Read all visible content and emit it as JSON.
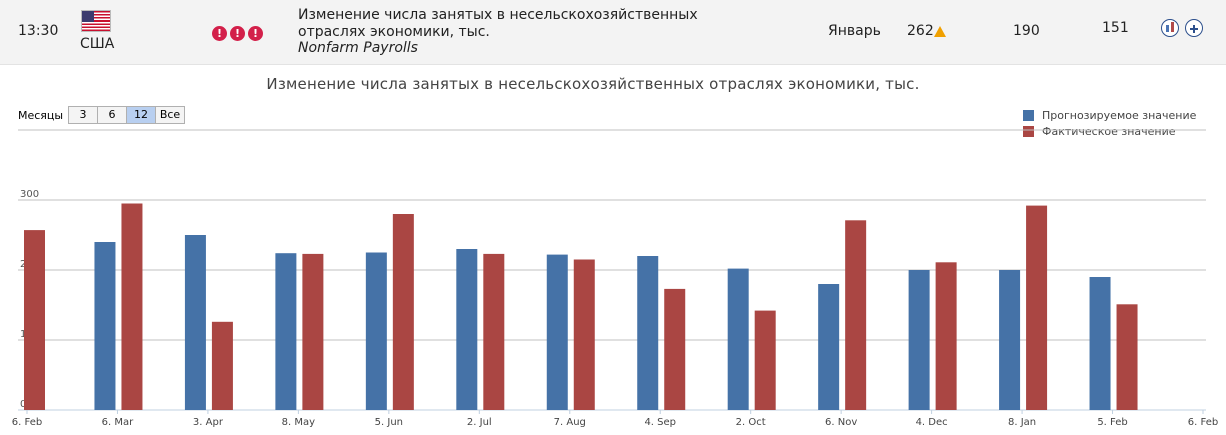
{
  "event": {
    "time": "13:30",
    "country": "США",
    "importance": [
      "!",
      "!",
      "!"
    ],
    "title": "Изменение числа занятых в несельскохозяйственных отраслях экономики, тыс.",
    "subtitle": "Nonfarm Payrolls",
    "period": "Январь",
    "previous": "262",
    "forecast": "190",
    "actual": "151",
    "icons": [
      "us-flag-icon",
      "warning-icon",
      "chart-icon",
      "add-icon"
    ]
  },
  "range_selector": {
    "label": "Месяцы",
    "options": [
      "3",
      "6",
      "12",
      "Все"
    ],
    "selected": "12"
  },
  "chart_data": {
    "type": "bar",
    "title": "Изменение числа занятых в несельскохозяйственных отраслях экономики, тыс.",
    "x_tick_labels": [
      "6. Feb",
      "6. Mar",
      "3. Apr",
      "8. May",
      "5. Jun",
      "2. Jul",
      "7. Aug",
      "4. Sep",
      "2. Oct",
      "6. Nov",
      "4. Dec",
      "8. Jan",
      "5. Feb",
      "6. Feb"
    ],
    "categories": [
      "6. Feb",
      "6. Mar",
      "3. Apr",
      "8. May",
      "5. Jun",
      "2. Jul",
      "7. Aug",
      "4. Sep",
      "2. Oct",
      "6. Nov",
      "4. Dec",
      "8. Jan",
      "5. Feb"
    ],
    "series": [
      {
        "name": "Прогнозируемое значение",
        "color": "#4572a7",
        "values": [
          null,
          240,
          250,
          224,
          225,
          230,
          222,
          220,
          202,
          180,
          200,
          200,
          190
        ]
      },
      {
        "name": "Фактическое значение",
        "color": "#aa4643",
        "values": [
          257,
          295,
          126,
          223,
          280,
          223,
          215,
          173,
          142,
          271,
          211,
          292,
          151
        ]
      }
    ],
    "y_tick_labels": [
      "0",
      "100",
      "200",
      "300"
    ],
    "ylim": [
      0,
      400
    ],
    "grid": true,
    "legend_position": "top-right"
  }
}
